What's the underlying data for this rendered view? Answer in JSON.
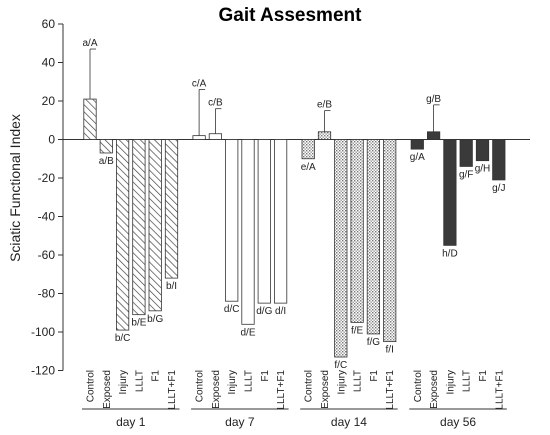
{
  "chart_data": {
    "type": "bar",
    "title": "Gait Assesment",
    "xlabel": "",
    "ylabel": "Sciatic Functional Index",
    "ylim": [
      -120,
      60
    ],
    "yticks": [
      60,
      40,
      20,
      0,
      -20,
      -40,
      -60,
      -80,
      -100,
      -120
    ],
    "grid": false,
    "groups": [
      {
        "label": "day 1",
        "fill": "hatch",
        "bars": [
          {
            "category": "Control",
            "value": 21,
            "error": 26,
            "label": "a/A"
          },
          {
            "category": "Exposed",
            "value": -7,
            "label": "a/B"
          },
          {
            "category": "Injury",
            "value": -99,
            "label": "b/C"
          },
          {
            "category": "LLLT",
            "value": -91,
            "label": "b/E"
          },
          {
            "category": "F1",
            "value": -89,
            "label": "b/G"
          },
          {
            "category": "LLLT+F1",
            "value": -72,
            "label": "b/I"
          }
        ]
      },
      {
        "label": "day 7",
        "fill": "white",
        "bars": [
          {
            "category": "Control",
            "value": 2,
            "error": 24,
            "label": "c/A"
          },
          {
            "category": "Exposed",
            "value": 3,
            "error": 13,
            "label": "c/B"
          },
          {
            "category": "Injury",
            "value": -84,
            "label": "d/C"
          },
          {
            "category": "LLLT",
            "value": -96,
            "label": "d/E"
          },
          {
            "category": "F1",
            "value": -85,
            "label": "d/G"
          },
          {
            "category": "LLLT+F1",
            "value": -85,
            "label": "d/I"
          }
        ]
      },
      {
        "label": "day 14",
        "fill": "dots",
        "bars": [
          {
            "category": "Control",
            "value": -10,
            "label": "e/A"
          },
          {
            "category": "Exposed",
            "value": 4,
            "error": 11,
            "label": "e/B"
          },
          {
            "category": "Injury",
            "value": -113,
            "label": "f/C"
          },
          {
            "category": "LLLT",
            "value": -95,
            "label": "f/E"
          },
          {
            "category": "F1",
            "value": -101,
            "label": "f/G"
          },
          {
            "category": "LLLT+F1",
            "value": -105,
            "label": "f/I"
          }
        ]
      },
      {
        "label": "day 56",
        "fill": "dark",
        "bars": [
          {
            "category": "Control",
            "value": -5,
            "label": "g/A"
          },
          {
            "category": "Exposed",
            "value": 4,
            "error": 14,
            "label": "g/B"
          },
          {
            "category": "Injury",
            "value": -55,
            "label": "h/D"
          },
          {
            "category": "LLLT",
            "value": -14,
            "label": "g/F"
          },
          {
            "category": "F1",
            "value": -11,
            "label": "g/H"
          },
          {
            "category": "LLLT+F1",
            "value": -21,
            "label": "g/J"
          }
        ]
      }
    ],
    "colors": {
      "dark_fill": "#3a3a3a",
      "hatch_stroke": "#444444",
      "dot_fill": "#777777",
      "axis": "#333333"
    }
  }
}
